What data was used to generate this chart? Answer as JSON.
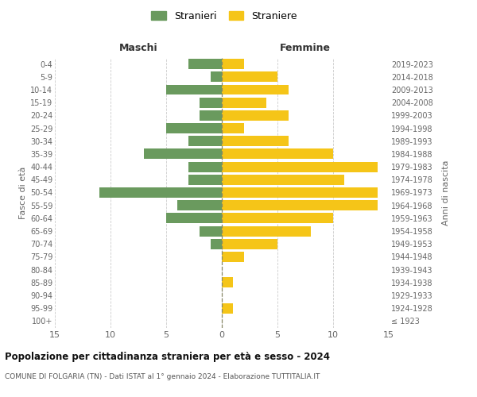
{
  "age_groups": [
    "100+",
    "95-99",
    "90-94",
    "85-89",
    "80-84",
    "75-79",
    "70-74",
    "65-69",
    "60-64",
    "55-59",
    "50-54",
    "45-49",
    "40-44",
    "35-39",
    "30-34",
    "25-29",
    "20-24",
    "15-19",
    "10-14",
    "5-9",
    "0-4"
  ],
  "birth_years": [
    "≤ 1923",
    "1924-1928",
    "1929-1933",
    "1934-1938",
    "1939-1943",
    "1944-1948",
    "1949-1953",
    "1954-1958",
    "1959-1963",
    "1964-1968",
    "1969-1973",
    "1974-1978",
    "1979-1983",
    "1984-1988",
    "1989-1993",
    "1994-1998",
    "1999-2003",
    "2004-2008",
    "2009-2013",
    "2014-2018",
    "2019-2023"
  ],
  "maschi": [
    0,
    0,
    0,
    0,
    0,
    0,
    1,
    2,
    5,
    4,
    11,
    3,
    3,
    7,
    3,
    5,
    2,
    2,
    5,
    1,
    3
  ],
  "femmine": [
    0,
    1,
    0,
    1,
    0,
    2,
    5,
    8,
    10,
    14,
    14,
    11,
    14,
    10,
    6,
    2,
    6,
    4,
    6,
    5,
    2
  ],
  "maschi_color": "#6a9a5e",
  "femmine_color": "#f5c518",
  "title": "Popolazione per cittadinanza straniera per età e sesso - 2024",
  "subtitle": "COMUNE DI FOLGARIA (TN) - Dati ISTAT al 1° gennaio 2024 - Elaborazione TUTTITALIA.IT",
  "ylabel_left": "Fasce di età",
  "ylabel_right": "Anni di nascita",
  "xlabel_left": "Maschi",
  "xlabel_right": "Femmine",
  "xlim": 15,
  "legend_maschi": "Stranieri",
  "legend_femmine": "Straniere",
  "bar_height": 0.8
}
